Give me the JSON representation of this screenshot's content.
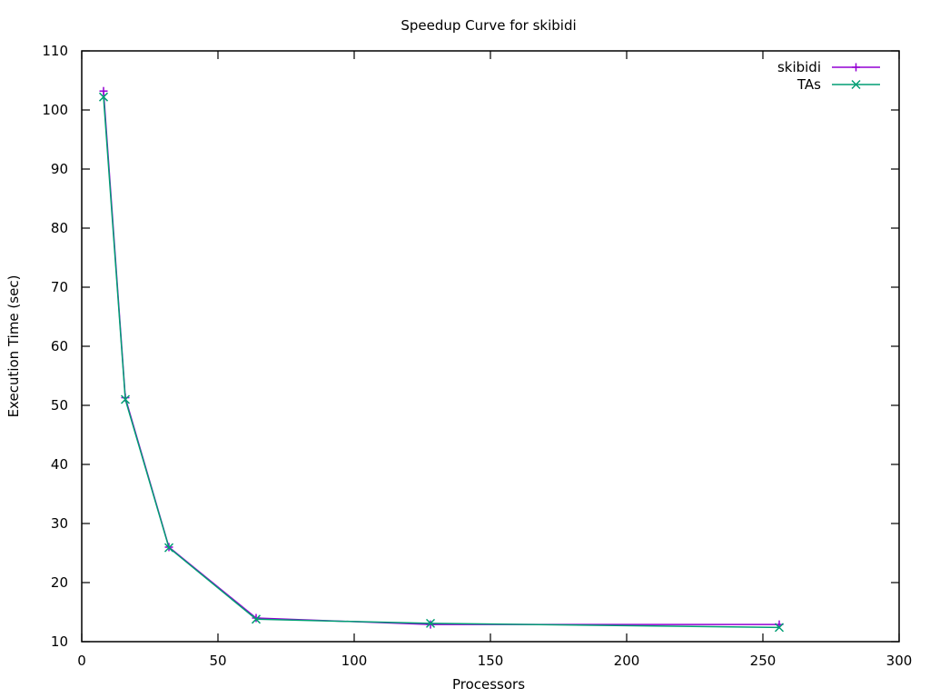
{
  "chart_data": {
    "type": "line",
    "title": "Speedup Curve for skibidi",
    "xlabel": "Processors",
    "ylabel": "Execution Time (sec)",
    "xlim": [
      0,
      300
    ],
    "ylim": [
      10,
      110
    ],
    "xticks": [
      0,
      50,
      100,
      150,
      200,
      250,
      300
    ],
    "yticks": [
      10,
      20,
      30,
      40,
      50,
      60,
      70,
      80,
      90,
      100,
      110
    ],
    "grid": false,
    "legend_position": "top-right",
    "series": [
      {
        "name": "skibidi",
        "color": "#9400d3",
        "marker": "plus",
        "x": [
          8,
          16,
          32,
          64,
          128,
          256
        ],
        "y": [
          103.2,
          51.3,
          26.0,
          14.0,
          12.9,
          12.9
        ]
      },
      {
        "name": "TAs",
        "color": "#009e73",
        "marker": "cross",
        "x": [
          8,
          16,
          32,
          64,
          128,
          256
        ],
        "y": [
          102.2,
          51.0,
          25.9,
          13.8,
          13.1,
          12.4
        ]
      }
    ]
  }
}
